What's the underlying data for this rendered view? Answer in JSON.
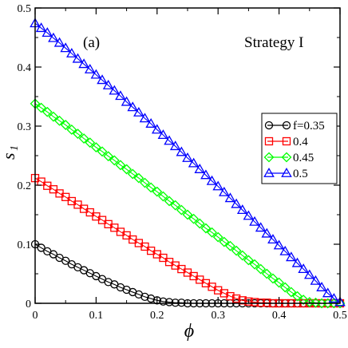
{
  "chart_data": {
    "type": "line",
    "panel_label": "(a)",
    "annotation": "Strategy I",
    "xlabel": "ϕ",
    "ylabel": "s",
    "ylabel_subscript": "1",
    "xlim": [
      0,
      0.5
    ],
    "ylim": [
      0,
      0.5
    ],
    "x_ticks": [
      "0",
      "0.1",
      "0.2",
      "0.3",
      "0.4",
      "0.5"
    ],
    "y_ticks": [
      "0",
      "0.1",
      "0.2",
      "0.3",
      "0.4",
      "0.5"
    ],
    "grid": false,
    "legend_position": "middle-right",
    "x": [
      0.0,
      0.01,
      0.02,
      0.03,
      0.04,
      0.05,
      0.06,
      0.07,
      0.08,
      0.09,
      0.1,
      0.11,
      0.12,
      0.13,
      0.14,
      0.15,
      0.16,
      0.17,
      0.18,
      0.19,
      0.2,
      0.21,
      0.22,
      0.23,
      0.24,
      0.25,
      0.26,
      0.27,
      0.28,
      0.29,
      0.3,
      0.31,
      0.32,
      0.33,
      0.34,
      0.35,
      0.36,
      0.37,
      0.38,
      0.39,
      0.4,
      0.41,
      0.42,
      0.43,
      0.44,
      0.45,
      0.46,
      0.47,
      0.48,
      0.49,
      0.5
    ],
    "series": [
      {
        "name": "f=0.35",
        "marker": "circle",
        "color": "#000000",
        "values": [
          0.1,
          0.094,
          0.088,
          0.083,
          0.077,
          0.072,
          0.066,
          0.061,
          0.056,
          0.051,
          0.046,
          0.041,
          0.036,
          0.032,
          0.027,
          0.023,
          0.019,
          0.015,
          0.011,
          0.008,
          0.005,
          0.003,
          0.002,
          0.001,
          0.001,
          0.0,
          0.0,
          0.0,
          0.0,
          0.0,
          0.0,
          0.0,
          0.0,
          0.0,
          0.0,
          0.0,
          0.0,
          0.0,
          0.0,
          0.0,
          0.0,
          0.0,
          0.0,
          0.0,
          0.0,
          0.0,
          0.0,
          0.0,
          0.0,
          0.0,
          0.0
        ]
      },
      {
        "name": "0.4",
        "marker": "square",
        "color": "#ff0000",
        "values": [
          0.212,
          0.206,
          0.199,
          0.193,
          0.186,
          0.18,
          0.173,
          0.167,
          0.16,
          0.154,
          0.147,
          0.141,
          0.134,
          0.128,
          0.121,
          0.115,
          0.108,
          0.102,
          0.096,
          0.089,
          0.083,
          0.077,
          0.07,
          0.064,
          0.058,
          0.052,
          0.046,
          0.04,
          0.034,
          0.028,
          0.022,
          0.017,
          0.012,
          0.008,
          0.005,
          0.003,
          0.002,
          0.001,
          0.001,
          0.0,
          0.0,
          0.0,
          0.0,
          0.0,
          0.0,
          0.0,
          0.0,
          0.0,
          0.0,
          0.0,
          0.0
        ]
      },
      {
        "name": "0.45",
        "marker": "diamond",
        "color": "#00ff00",
        "values": [
          0.338,
          0.331,
          0.324,
          0.316,
          0.309,
          0.302,
          0.294,
          0.287,
          0.279,
          0.272,
          0.264,
          0.257,
          0.249,
          0.242,
          0.234,
          0.227,
          0.219,
          0.212,
          0.204,
          0.196,
          0.189,
          0.181,
          0.173,
          0.166,
          0.158,
          0.15,
          0.143,
          0.135,
          0.127,
          0.12,
          0.112,
          0.104,
          0.097,
          0.089,
          0.081,
          0.073,
          0.066,
          0.058,
          0.05,
          0.042,
          0.035,
          0.027,
          0.019,
          0.012,
          0.006,
          0.002,
          0.001,
          0.0,
          0.0,
          0.0,
          0.0
        ]
      },
      {
        "name": "0.5",
        "marker": "triangle",
        "color": "#0000ff",
        "values": [
          0.474,
          0.466,
          0.458,
          0.449,
          0.441,
          0.432,
          0.423,
          0.414,
          0.405,
          0.396,
          0.387,
          0.378,
          0.369,
          0.36,
          0.351,
          0.341,
          0.332,
          0.323,
          0.313,
          0.304,
          0.294,
          0.285,
          0.275,
          0.266,
          0.256,
          0.246,
          0.237,
          0.227,
          0.217,
          0.207,
          0.198,
          0.188,
          0.178,
          0.168,
          0.158,
          0.148,
          0.138,
          0.128,
          0.118,
          0.108,
          0.098,
          0.088,
          0.078,
          0.068,
          0.058,
          0.048,
          0.038,
          0.027,
          0.017,
          0.008,
          0.002
        ]
      }
    ]
  }
}
